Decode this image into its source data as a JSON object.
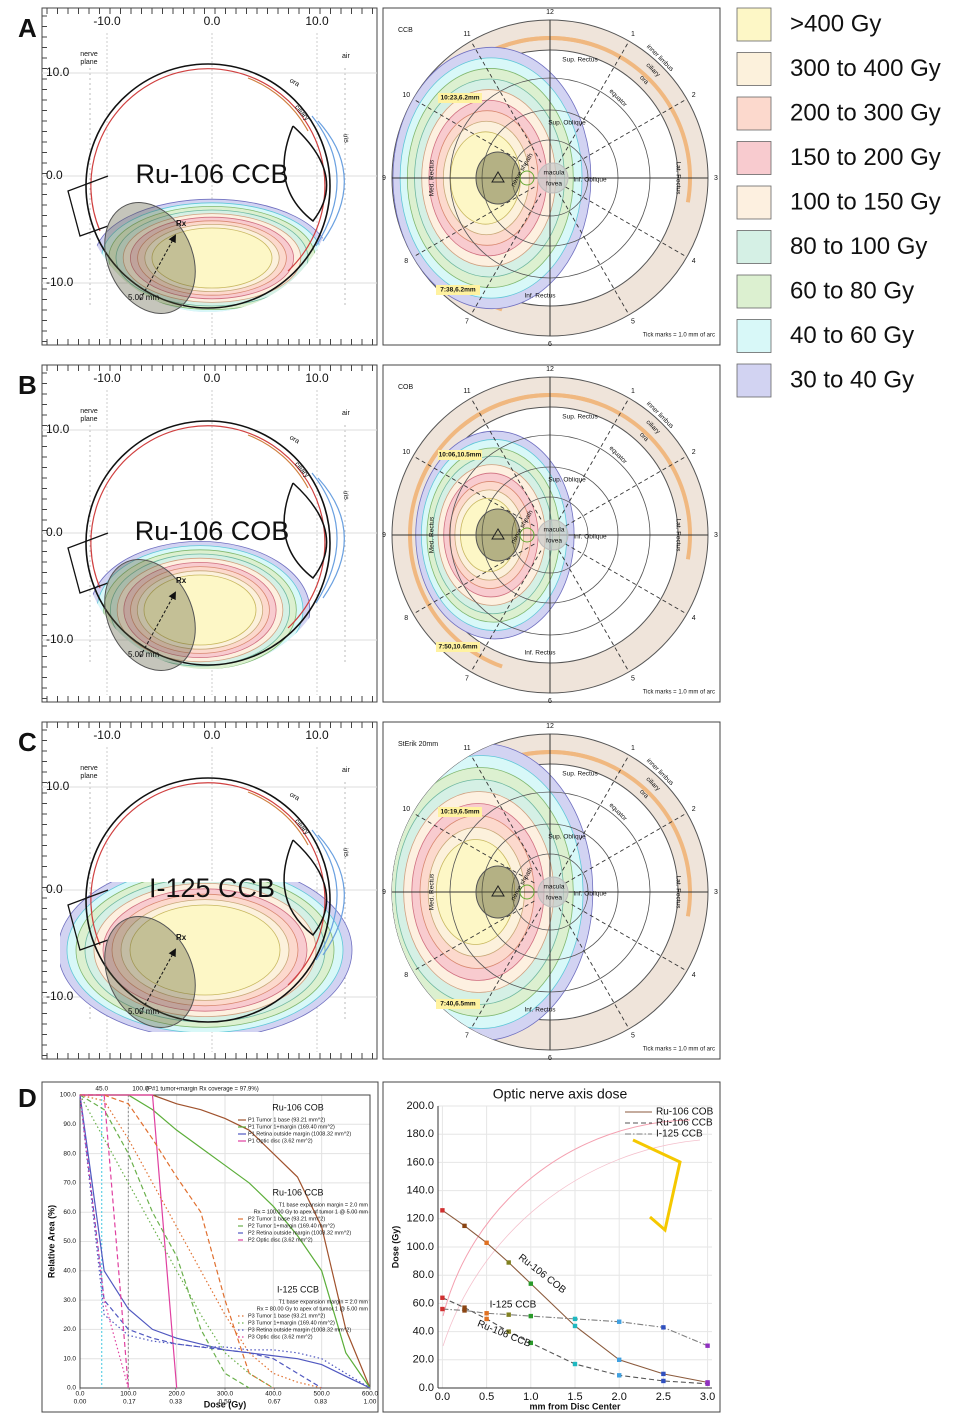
{
  "panels": [
    {
      "letter": "A",
      "eye": {
        "title": "Ru-106 CCB",
        "x_ticks": [
          "-10.0",
          "0.0",
          "10.0"
        ],
        "y_ticks": [
          "10.0",
          "0.0",
          "-10.0"
        ],
        "nerve_plane": [
          "nerve",
          "plane"
        ],
        "air": "air",
        "ora": "ora",
        "ciliary": "ciliary",
        "iris": "iris",
        "rx": "Rx",
        "height": "5.00 mm"
      },
      "fundus": {
        "source": "CCB",
        "clock": [
          "12",
          "1",
          "2",
          "3",
          "4",
          "5",
          "6",
          "7",
          "8",
          "9",
          "10",
          "11"
        ],
        "muscles": [
          "Sup. Rectus",
          "Inf. Rectus",
          "Med. Rectus",
          "Lat. Rectus",
          "Sup. Oblique",
          "Inf. Oblique"
        ],
        "landmarks": [
          "inner limbus",
          "ciliary",
          "ora",
          "equator",
          "macula",
          "fovea",
          "nerve sheath"
        ],
        "points": [
          "10:23,6.2mm",
          "7:38,6.2mm"
        ],
        "note": "Tick marks = 1.0 mm of arc"
      }
    },
    {
      "letter": "B",
      "eye": {
        "title": "Ru-106 COB",
        "x_ticks": [
          "-10.0",
          "0.0",
          "10.0"
        ],
        "y_ticks": [
          "10.0",
          "0.0",
          "-10.0"
        ],
        "nerve_plane": [
          "nerve",
          "plane"
        ],
        "air": "air",
        "ora": "ora",
        "ciliary": "ciliary",
        "iris": "iris",
        "rx": "Rx",
        "height": "5.00 mm"
      },
      "fundus": {
        "source": "COB",
        "clock": [
          "12",
          "1",
          "2",
          "3",
          "4",
          "5",
          "6",
          "7",
          "8",
          "9",
          "10",
          "11"
        ],
        "muscles": [
          "Sup. Rectus",
          "Inf. Rectus",
          "Med. Rectus",
          "Lat. Rectus",
          "Sup. Oblique",
          "Inf. Oblique"
        ],
        "landmarks": [
          "inner limbus",
          "ciliary",
          "ora",
          "equator",
          "macula",
          "fovea",
          "nerve sheath"
        ],
        "points": [
          "10:06,10.5mm",
          "7:50,10.6mm"
        ],
        "note": "Tick marks = 1.0 mm of arc"
      }
    },
    {
      "letter": "C",
      "eye": {
        "title": "I-125 CCB",
        "x_ticks": [
          "-10.0",
          "0.0",
          "10.0"
        ],
        "y_ticks": [
          "10.0",
          "0.0",
          "-10.0"
        ],
        "nerve_plane": [
          "nerve",
          "plane"
        ],
        "air": "air",
        "ora": "ora",
        "ciliary": "ciliary",
        "iris": "iris",
        "rx": "Rx",
        "height": "5.00 mm"
      },
      "fundus": {
        "source": "StErik 20mm",
        "clock": [
          "12",
          "1",
          "2",
          "3",
          "4",
          "5",
          "6",
          "7",
          "8",
          "9",
          "10",
          "11"
        ],
        "muscles": [
          "Sup. Rectus",
          "Inf. Rectus",
          "Med. Rectus",
          "Lat. Rectus",
          "Sup. Oblique",
          "Inf. Oblique"
        ],
        "landmarks": [
          "inner limbus",
          "ciliary",
          "ora",
          "equator",
          "macula",
          "fovea",
          "nerve sheath"
        ],
        "points": [
          "10:19,6.5mm",
          "7:40,6.5mm"
        ],
        "note": "Tick marks = 1.0 mm of arc"
      }
    }
  ],
  "dose_legend": [
    {
      "label": ">400 Gy",
      "color": "#fdf7c6",
      "border": "#c8b860"
    },
    {
      "label": "300 to 400 Gy",
      "color": "#fcf1dc",
      "border": "#c8a878"
    },
    {
      "label": "200 to 300 Gy",
      "color": "#fcd9cd",
      "border": "#d88870"
    },
    {
      "label": "150 to 200 Gy",
      "color": "#f8cbcf",
      "border": "#d07080"
    },
    {
      "label": "100 to 150 Gy",
      "color": "#fdf0e0",
      "border": "#d0a080"
    },
    {
      "label": "80 to 100 Gy",
      "color": "#d5f0e5",
      "border": "#70b8a0"
    },
    {
      "label": "60 to 80 Gy",
      "color": "#dcf0d0",
      "border": "#80b870"
    },
    {
      "label": "40 to 60 Gy",
      "color": "#d8f8f8",
      "border": "#60c8d8"
    },
    {
      "label": "30 to 40 Gy",
      "color": "#d2d3f2",
      "border": "#7070c0"
    }
  ],
  "panel_d_letter": "D",
  "chart_data": [
    {
      "type": "line",
      "x_label": "Dose (Gy)",
      "y_label": "Relative Area (%)",
      "x": [
        0,
        50,
        100,
        150,
        200,
        250,
        300,
        350,
        400,
        450,
        500,
        550,
        600
      ],
      "xlim": [
        0,
        600
      ],
      "xticks": [
        {
          "value": 0,
          "label": "0.0"
        },
        {
          "value": 100,
          "label": "100.0"
        },
        {
          "value": 200,
          "label": "200.0"
        },
        {
          "value": 300,
          "label": "300.0"
        },
        {
          "value": 400,
          "label": "400.0"
        },
        {
          "value": 500,
          "label": "500.0"
        },
        {
          "value": 600,
          "label": "600.0"
        }
      ],
      "x2lim": [
        0,
        1
      ],
      "x2ticks": [
        {
          "value": 0,
          "label": "0.00"
        },
        {
          "value": 0.17,
          "label": "0.17"
        },
        {
          "value": 0.33,
          "label": "0.33"
        },
        {
          "value": 0.5,
          "label": "0.50"
        },
        {
          "value": 0.67,
          "label": "0.67"
        },
        {
          "value": 0.83,
          "label": "0.83"
        },
        {
          "value": 1,
          "label": "1.00"
        }
      ],
      "ylim": [
        0,
        100
      ],
      "yticks": [
        {
          "value": 0,
          "label": "0.0"
        },
        {
          "value": 10,
          "label": "10.0"
        },
        {
          "value": 20,
          "label": "20.0"
        },
        {
          "value": 30,
          "label": "30.0"
        },
        {
          "value": 40,
          "label": "40.0"
        },
        {
          "value": 50,
          "label": "50.0"
        },
        {
          "value": 60,
          "label": "60.0"
        },
        {
          "value": 70,
          "label": "70.0"
        },
        {
          "value": 80,
          "label": "80.0"
        },
        {
          "value": 90,
          "label": "90.0"
        },
        {
          "value": 100,
          "label": "100.0"
        }
      ],
      "grid": true,
      "markers": [
        {
          "value": 45,
          "label": "45.0",
          "color": "#40c8e0"
        },
        {
          "value": 100,
          "label": "100.0",
          "color": "#909090"
        }
      ],
      "coverage_note": "(P#1 tumor+margin Rx coverage = 97.9%)",
      "groups": [
        {
          "title": "Ru-106 COB",
          "series": [
            {
              "name": "P1 Tumor 1 base (93.21 mm^2)",
              "color": "#a0522d",
              "style": "solid",
              "values": [
                100,
                100,
                100,
                100,
                97,
                95,
                92,
                88,
                80,
                72,
                55,
                20,
                0
              ]
            },
            {
              "name": "P1 Tumor 1+margin (169.40 mm^2)",
              "color": "#5cae3a",
              "style": "solid",
              "values": [
                100,
                100,
                100,
                95,
                88,
                82,
                76,
                70,
                62,
                52,
                40,
                12,
                0
              ]
            },
            {
              "name": "P1 Retina outside margin (1008.32 mm^2)",
              "color": "#5058c0",
              "style": "solid",
              "values": [
                100,
                40,
                27,
                20,
                17,
                15,
                13,
                12,
                11,
                10,
                8,
                4,
                0
              ]
            },
            {
              "name": "P1 Optic disc (3.62 mm^2)",
              "color": "#e040a0",
              "style": "solid",
              "values": [
                100,
                100,
                100,
                100,
                0,
                null,
                null,
                null,
                null,
                null,
                null,
                null,
                null
              ]
            }
          ]
        },
        {
          "title": "Ru-106 CCB",
          "notes": [
            "T1  base expansion margin = 2.0 mm",
            "Rx = 100.00 Gy to apex of tumor 1 @ 5.00 mm"
          ],
          "series": [
            {
              "name": "P2 Tumor 1 base (93.21 mm^2)",
              "color": "#e07030",
              "style": "dashed",
              "values": [
                100,
                100,
                97,
                85,
                72,
                60,
                30,
                5,
                0,
                null,
                null,
                null,
                null
              ]
            },
            {
              "name": "P2 Tumor 1+margin (169.40 mm^2)",
              "color": "#6ab04c",
              "style": "dashed",
              "values": [
                100,
                95,
                80,
                60,
                45,
                20,
                5,
                0,
                null,
                null,
                null,
                null,
                null
              ]
            },
            {
              "name": "P2 Retina outside margin (1008.32 mm^2)",
              "color": "#5058c0",
              "style": "dashed",
              "values": [
                100,
                30,
                20,
                17,
                15,
                14,
                13,
                12,
                10,
                5,
                0,
                null,
                null
              ]
            },
            {
              "name": "P2 Optic disc (3.62 mm^2)",
              "color": "#e040a0",
              "style": "dashed",
              "values": [
                100,
                100,
                0,
                null,
                null,
                null,
                null,
                null,
                null,
                null,
                null,
                null,
                null
              ]
            }
          ]
        },
        {
          "title": "I-125 CCB",
          "notes": [
            "T1  base expansion margin = 2.0 mm",
            "Rx = 80.00 Gy to apex of tumor 1 @ 5.00 mm"
          ],
          "series": [
            {
              "name": "P3 Tumor 1 base (93.21 mm^2)",
              "color": "#e07030",
              "style": "dotted",
              "values": [
                100,
                98,
                85,
                70,
                55,
                40,
                25,
                12,
                5,
                2,
                0,
                null,
                null
              ]
            },
            {
              "name": "P3 Tumor 1+margin (169.40 mm^2)",
              "color": "#6ab04c",
              "style": "dotted",
              "values": [
                100,
                85,
                70,
                55,
                40,
                25,
                12,
                5,
                0,
                null,
                null,
                null,
                null
              ]
            },
            {
              "name": "P3 Retina outside margin (1008.32 mm^2)",
              "color": "#5058c0",
              "style": "dotted",
              "values": [
                100,
                25,
                18,
                16,
                15,
                14,
                14,
                13,
                13,
                12,
                10,
                5,
                0
              ]
            },
            {
              "name": "P3 Optic disc (3.62 mm^2)",
              "color": "#e040a0",
              "style": "dotted",
              "values": [
                100,
                30,
                0,
                null,
                null,
                null,
                null,
                null,
                null,
                null,
                null,
                null,
                null
              ]
            }
          ]
        }
      ]
    },
    {
      "type": "line",
      "title": "Optic nerve axis dose",
      "x_label": "mm from Disc Center",
      "y_label": "Dose (Gy)",
      "x": [
        0,
        0.25,
        0.5,
        0.75,
        1.0,
        1.5,
        2.0,
        2.5,
        3.0
      ],
      "xlim": [
        -0.05,
        3.05
      ],
      "xticks": [
        {
          "value": 0,
          "label": "0.0"
        },
        {
          "value": 0.5,
          "label": "0.5"
        },
        {
          "value": 1,
          "label": "1.0"
        },
        {
          "value": 1.5,
          "label": "1.5"
        },
        {
          "value": 2,
          "label": "2.0"
        },
        {
          "value": 2.5,
          "label": "2.5"
        },
        {
          "value": 3,
          "label": "3.0"
        }
      ],
      "ylim": [
        0,
        200
      ],
      "yticks": [
        {
          "value": 0,
          "label": "0.0"
        },
        {
          "value": 20,
          "label": "20.0"
        },
        {
          "value": 40,
          "label": "40.0"
        },
        {
          "value": 60,
          "label": "60.0"
        },
        {
          "value": 80,
          "label": "80.0"
        },
        {
          "value": 100,
          "label": "100.0"
        },
        {
          "value": 120,
          "label": "120.0"
        },
        {
          "value": 140,
          "label": "140.0"
        },
        {
          "value": 160,
          "label": "160.0"
        },
        {
          "value": 180,
          "label": "180.0"
        },
        {
          "value": 200,
          "label": "200.0"
        }
      ],
      "grid": true,
      "legend": "top-right",
      "point_colors": [
        "#d03030",
        "#8b4513",
        "#e07020",
        "#808020",
        "#2a9a2a",
        "#20b8c0",
        "#40a0e0",
        "#3050c0",
        "#9030c0"
      ],
      "series": [
        {
          "name": "Ru-106 COB",
          "color": "#8b5a3c",
          "style": "solid",
          "values": [
            126,
            115,
            103,
            89,
            74,
            44,
            20,
            10,
            4
          ]
        },
        {
          "name": "Ru-106 CCB",
          "color": "#555555",
          "style": "dashed",
          "values": [
            64,
            57,
            49,
            40,
            32,
            17,
            9,
            5,
            3
          ]
        },
        {
          "name": "I-125 CCB",
          "color": "#808080",
          "style": "dashdot",
          "values": [
            56,
            55,
            53,
            52,
            51,
            49,
            47,
            43,
            30
          ]
        }
      ],
      "annotations": [
        "Ru-106 COB",
        "I-125 CCB",
        "Ru-106 CCB"
      ]
    }
  ]
}
